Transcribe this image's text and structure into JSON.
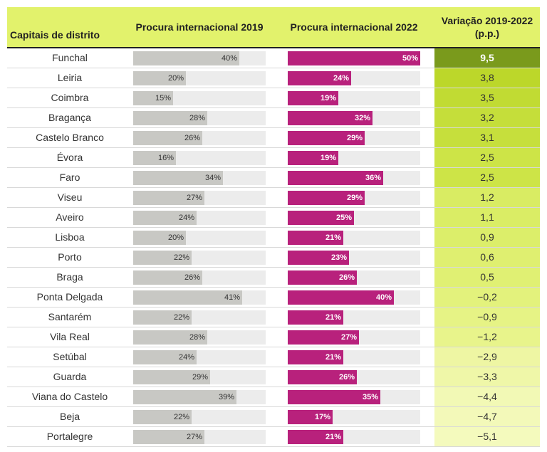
{
  "header": {
    "col0": "Capitais de distrito",
    "col1": "Procura internacional 2019",
    "col2": "Procura internacional 2022",
    "col3": "Variação 2019-2022 (p.p.)"
  },
  "colors": {
    "bar2019": "#c8c8c4",
    "bar2022": "#b8217c",
    "track": "#ececec",
    "header": "#e2f26c"
  },
  "chart_data": {
    "type": "table",
    "columns": [
      "Capitais de distrito",
      "Procura internacional 2019",
      "Procura internacional 2022",
      "Variação 2019-2022 (p.p.)"
    ],
    "bar_max_percent": 50,
    "rows": [
      {
        "name": "Funchal",
        "v2019": 40,
        "v2022": 50,
        "label2019": "40%",
        "label2022": "50%",
        "variation": "9,5",
        "bg": "#7a9a1c",
        "color": "#ffffff",
        "bold": true
      },
      {
        "name": "Leiria",
        "v2019": 20,
        "v2022": 24,
        "label2019": "20%",
        "label2022": "24%",
        "variation": "3,8",
        "bg": "#bcd72a",
        "color": "#333333"
      },
      {
        "name": "Coimbra",
        "v2019": 15,
        "v2022": 19,
        "label2019": "15%",
        "label2022": "19%",
        "variation": "3,5",
        "bg": "#c1db33",
        "color": "#333333"
      },
      {
        "name": "Bragança",
        "v2019": 28,
        "v2022": 32,
        "label2019": "28%",
        "label2022": "32%",
        "variation": "3,2",
        "bg": "#c5de3a",
        "color": "#333333"
      },
      {
        "name": "Castelo Branco",
        "v2019": 26,
        "v2022": 29,
        "label2019": "26%",
        "label2022": "29%",
        "variation": "3,1",
        "bg": "#c6df3c",
        "color": "#333333"
      },
      {
        "name": "Évora",
        "v2019": 16,
        "v2022": 19,
        "label2019": "16%",
        "label2022": "19%",
        "variation": "2,5",
        "bg": "#cde447",
        "color": "#333333"
      },
      {
        "name": "Faro",
        "v2019": 34,
        "v2022": 36,
        "label2019": "34%",
        "label2022": "36%",
        "variation": "2,5",
        "bg": "#cde447",
        "color": "#333333"
      },
      {
        "name": "Viseu",
        "v2019": 27,
        "v2022": 29,
        "label2019": "27%",
        "label2022": "29%",
        "variation": "1,2",
        "bg": "#d9ec63",
        "color": "#333333"
      },
      {
        "name": "Aveiro",
        "v2019": 24,
        "v2022": 25,
        "label2019": "24%",
        "label2022": "25%",
        "variation": "1,1",
        "bg": "#daed65",
        "color": "#333333"
      },
      {
        "name": "Lisboa",
        "v2019": 20,
        "v2022": 21,
        "label2019": "20%",
        "label2022": "21%",
        "variation": "0,9",
        "bg": "#dcee6a",
        "color": "#333333"
      },
      {
        "name": "Porto",
        "v2019": 22,
        "v2022": 23,
        "label2019": "22%",
        "label2022": "23%",
        "variation": "0,6",
        "bg": "#dfef70",
        "color": "#333333"
      },
      {
        "name": "Braga",
        "v2019": 26,
        "v2022": 26,
        "label2019": "26%",
        "label2022": "26%",
        "variation": "0,5",
        "bg": "#e0f073",
        "color": "#333333"
      },
      {
        "name": "Ponta Delgada",
        "v2019": 41,
        "v2022": 40,
        "label2019": "41%",
        "label2022": "40%",
        "variation": "−0,2",
        "bg": "#e3f27c",
        "color": "#333333"
      },
      {
        "name": "Santarém",
        "v2019": 22,
        "v2022": 21,
        "label2019": "22%",
        "label2022": "21%",
        "variation": "−0,9",
        "bg": "#e6f385",
        "color": "#333333"
      },
      {
        "name": "Vila Real",
        "v2019": 28,
        "v2022": 27,
        "label2019": "28%",
        "label2022": "27%",
        "variation": "−1,2",
        "bg": "#e8f48b",
        "color": "#333333"
      },
      {
        "name": "Setúbal",
        "v2019": 24,
        "v2022": 21,
        "label2019": "24%",
        "label2022": "21%",
        "variation": "−2,9",
        "bg": "#eef6a3",
        "color": "#333333"
      },
      {
        "name": "Guarda",
        "v2019": 29,
        "v2022": 26,
        "label2019": "29%",
        "label2022": "26%",
        "variation": "−3,3",
        "bg": "#eff7a8",
        "color": "#333333"
      },
      {
        "name": "Viana do Castelo",
        "v2019": 39,
        "v2022": 35,
        "label2019": "39%",
        "label2022": "35%",
        "variation": "−4,4",
        "bg": "#f2f9b5",
        "color": "#333333"
      },
      {
        "name": "Beja",
        "v2019": 22,
        "v2022": 17,
        "label2019": "22%",
        "label2022": "17%",
        "variation": "−4,7",
        "bg": "#f3f9b9",
        "color": "#333333"
      },
      {
        "name": "Portalegre",
        "v2019": 27,
        "v2022": 21,
        "label2019": "27%",
        "label2022": "21%",
        "variation": "−5,1",
        "bg": "#f4fabd",
        "color": "#333333"
      }
    ]
  }
}
